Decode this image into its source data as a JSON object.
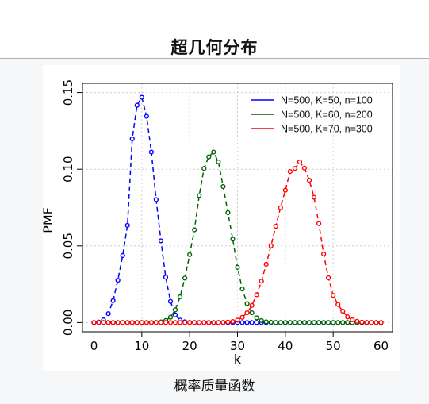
{
  "page": {
    "title": "超几何分布",
    "caption": "概率质量函数"
  },
  "chart_data": {
    "type": "line",
    "xlabel": "k",
    "ylabel": "PMF",
    "xlim": [
      0,
      60
    ],
    "ylim": [
      0,
      0.15
    ],
    "x_ticks": [
      0,
      10,
      20,
      30,
      40,
      50,
      60
    ],
    "y_ticks": [
      0.0,
      0.05,
      0.1,
      0.15
    ],
    "y_tick_labels": [
      "0.00",
      "0.05",
      "0.10",
      "0.15"
    ],
    "grid": true,
    "legend_position": "top-right",
    "series": [
      {
        "name": "N=500, K=50, n=100",
        "color": "#0000ff",
        "x": [
          0,
          1,
          2,
          3,
          4,
          5,
          6,
          7,
          8,
          9,
          10,
          11,
          12,
          13,
          14,
          15,
          16,
          17,
          18,
          19,
          20,
          21,
          22,
          23,
          24,
          25,
          26,
          27,
          28,
          29,
          30,
          31,
          32,
          33,
          34,
          35,
          36,
          37,
          38,
          39,
          40,
          41,
          42,
          43,
          44,
          45,
          46,
          47,
          48,
          49,
          50,
          51,
          52,
          53,
          54,
          55,
          56,
          57,
          58,
          59,
          60
        ],
        "values": [
          0.0,
          0.0003,
          0.0017,
          0.0058,
          0.0143,
          0.0276,
          0.0437,
          0.0634,
          0.1198,
          0.1417,
          0.1469,
          0.1345,
          0.1112,
          0.0802,
          0.0533,
          0.0296,
          0.0138,
          0.005,
          0.0016,
          0.0005,
          0.0001,
          0.0,
          0.0,
          0.0,
          0.0,
          0.0,
          0.0,
          0.0,
          0.0,
          0.0,
          0.0,
          0.0,
          0.0,
          0.0,
          0.0,
          0.0,
          0.0,
          0.0,
          0.0,
          0.0,
          0.0,
          0.0,
          0.0,
          0.0,
          0.0,
          0.0,
          0.0,
          0.0,
          0.0,
          0.0,
          0.0,
          0.0,
          0.0,
          0.0,
          0.0,
          0.0,
          0.0,
          0.0,
          0.0,
          0.0,
          0.0
        ]
      },
      {
        "name": "N=500, K=60, n=200",
        "color": "#006400",
        "x": [
          0,
          1,
          2,
          3,
          4,
          5,
          6,
          7,
          8,
          9,
          10,
          11,
          12,
          13,
          14,
          15,
          16,
          17,
          18,
          19,
          20,
          21,
          22,
          23,
          24,
          25,
          26,
          27,
          28,
          29,
          30,
          31,
          32,
          33,
          34,
          35,
          36,
          37,
          38,
          39,
          40,
          41,
          42,
          43,
          44,
          45,
          46,
          47,
          48,
          49,
          50,
          51,
          52,
          53,
          54,
          55,
          56,
          57,
          58,
          59,
          60
        ],
        "values": [
          0.0,
          0.0,
          0.0,
          0.0,
          0.0,
          0.0,
          0.0,
          0.0,
          0.0,
          0.0,
          0.0,
          0.0,
          0.0,
          0.0001,
          0.0004,
          0.0013,
          0.0035,
          0.0083,
          0.0168,
          0.029,
          0.0443,
          0.0605,
          0.0828,
          0.1005,
          0.1081,
          0.1112,
          0.1048,
          0.0887,
          0.0717,
          0.0544,
          0.036,
          0.0219,
          0.0124,
          0.0064,
          0.0031,
          0.0013,
          0.0005,
          0.0002,
          0.0,
          0.0,
          0.0,
          0.0,
          0.0,
          0.0,
          0.0,
          0.0,
          0.0,
          0.0,
          0.0,
          0.0,
          0.0,
          0.0,
          0.0,
          0.0,
          0.0,
          0.0,
          0.0,
          0.0,
          0.0,
          0.0,
          0.0
        ]
      },
      {
        "name": "N=500, K=70, n=300",
        "color": "#ff0000",
        "x": [
          0,
          1,
          2,
          3,
          4,
          5,
          6,
          7,
          8,
          9,
          10,
          11,
          12,
          13,
          14,
          15,
          16,
          17,
          18,
          19,
          20,
          21,
          22,
          23,
          24,
          25,
          26,
          27,
          28,
          29,
          30,
          31,
          32,
          33,
          34,
          35,
          36,
          37,
          38,
          39,
          40,
          41,
          42,
          43,
          44,
          45,
          46,
          47,
          48,
          49,
          50,
          51,
          52,
          53,
          54,
          55,
          56,
          57,
          58,
          59,
          60
        ],
        "values": [
          0.0,
          0.0,
          0.0,
          0.0,
          0.0,
          0.0,
          0.0,
          0.0,
          0.0,
          0.0,
          0.0,
          0.0,
          0.0,
          0.0,
          0.0,
          0.0,
          0.0,
          0.0,
          0.0,
          0.0,
          0.0,
          0.0,
          0.0,
          0.0,
          0.0,
          0.0,
          0.0,
          0.0001,
          0.0003,
          0.0007,
          0.0016,
          0.0034,
          0.0064,
          0.0112,
          0.0181,
          0.027,
          0.038,
          0.05,
          0.0628,
          0.0749,
          0.0863,
          0.0985,
          0.1005,
          0.1047,
          0.1007,
          0.0928,
          0.0817,
          0.0646,
          0.0447,
          0.0292,
          0.0177,
          0.0118,
          0.0074,
          0.0037,
          0.0018,
          0.0008,
          0.0003,
          0.0001,
          0.0,
          0.0,
          0.0
        ]
      }
    ]
  }
}
